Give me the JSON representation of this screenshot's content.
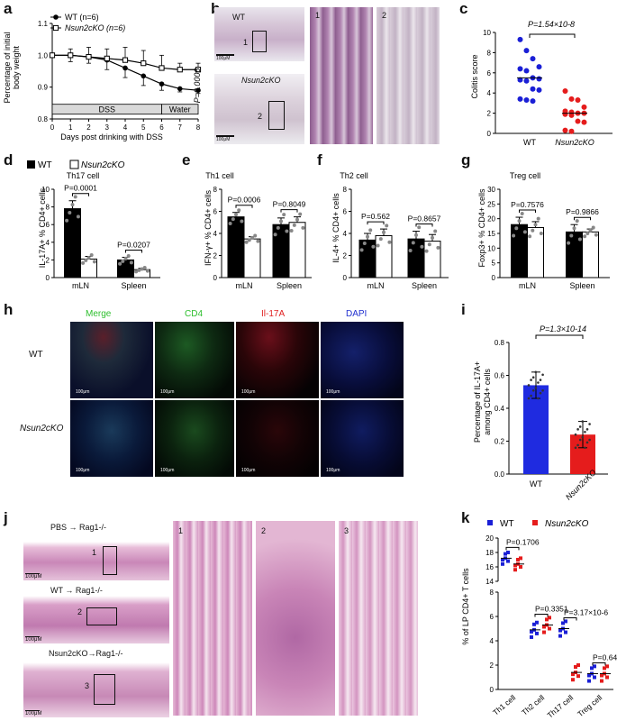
{
  "panels": {
    "a": {
      "label": "a",
      "ylabel_line1": "Percentage of initial",
      "ylabel_line2": "body weight",
      "xlabel": "Days post drinking with DSS",
      "legend": [
        "WT (n=6)",
        "Nsun2cKO (n=6)"
      ],
      "pvalue": "P=0.0006",
      "bars": [
        "DSS",
        "Water"
      ],
      "yticks": [
        "0.8",
        "0.9",
        "1.0",
        "1.1"
      ],
      "xticks": [
        "0",
        "1",
        "2",
        "3",
        "4",
        "5",
        "6",
        "7",
        "8"
      ]
    },
    "b": {
      "label": "b",
      "wt": "WT",
      "ko": "Nsun2cKO",
      "z1": "1",
      "z2": "2",
      "box1": "1",
      "box2": "2",
      "scale1": "100μM",
      "scale2": "100μM"
    },
    "c": {
      "label": "c",
      "ylabel": "Colitis score",
      "pvalue": "P=1.54×10-8",
      "xticks": [
        "WT",
        "Nsun2cKO"
      ],
      "yticks": [
        "0",
        "2",
        "4",
        "6",
        "8",
        "10"
      ]
    },
    "d": {
      "label": "d",
      "title": "Th17 cell",
      "legend": [
        "WT",
        "Nsun2cKO"
      ],
      "ylabel": "IL-17A+ % CD4+ cells",
      "p1": "P=0.0001",
      "p2": "P=0.0207",
      "xticks": [
        "mLN",
        "Spleen"
      ],
      "yticks": [
        "0",
        "2",
        "4",
        "6",
        "8",
        "10"
      ]
    },
    "e": {
      "label": "e",
      "title": "Th1 cell",
      "ylabel": "IFN-γ+ % CD4+ cells",
      "p1": "P=0.0006",
      "p2": "P=0.8049",
      "xticks": [
        "mLN",
        "Spleen"
      ],
      "yticks": [
        "0",
        "2",
        "4",
        "6",
        "8"
      ]
    },
    "f": {
      "label": "f",
      "title": "Th2 cell",
      "ylabel": "IL-4+ % CD4+ cells",
      "p1": "P=0.562",
      "p2": "P=0.8657",
      "xticks": [
        "mLN",
        "Spleen"
      ],
      "yticks": [
        "0",
        "2",
        "4",
        "6",
        "8"
      ]
    },
    "g": {
      "label": "g",
      "title": "Treg cell",
      "ylabel": "Foxp3+ % CD4+ cells",
      "p1": "P=0.7576",
      "p2": "P=0.9866",
      "xticks": [
        "mLN",
        "Spleen"
      ],
      "yticks": [
        "0",
        "5",
        "10",
        "15",
        "20",
        "25",
        "30"
      ]
    },
    "h": {
      "label": "h",
      "merge1": "Merge",
      "cd4": "CD4",
      "il17a": "Il-17A",
      "dapi": "DAPI",
      "wt": "WT",
      "ko": "Nsun2cKO",
      "scale": "100μm"
    },
    "i": {
      "label": "i",
      "ylabel_line1": "Percentage of IL-17A+",
      "ylabel_line2": "among CD4+ cells",
      "pvalue": "P=1.3×10-14",
      "xticks": [
        "WT",
        "Nsun2cKO"
      ],
      "yticks": [
        "0.0",
        "0.2",
        "0.4",
        "0.6",
        "0.8"
      ]
    },
    "j": {
      "label": "j",
      "row1": "PBS → Rag1-/-",
      "row2": "WT → Rag1-/-",
      "row3": "Nsun2cKO→Rag1-/-",
      "z1": "1",
      "z2": "2",
      "z3": "3",
      "b1": "1",
      "b2": "2",
      "b3": "3",
      "scale": "100μM"
    },
    "k": {
      "label": "k",
      "legend": [
        "WT",
        "Nsun2cKO"
      ],
      "ylabel": "% of LP CD4+ T cells",
      "p1": "P=0.1706",
      "p2": "P=0.3351",
      "p3": "P=3.17×10-6",
      "p4": "P=0.6488",
      "xticks": [
        "Th1 cell",
        "Th2 cell",
        "Th17 cell",
        "Treg cell"
      ],
      "yticks_top": [
        "14",
        "16",
        "18",
        "20"
      ],
      "yticks_bottom": [
        "0",
        "2",
        "4",
        "6",
        "8"
      ]
    }
  },
  "chart_data": [
    {
      "type": "line",
      "panel": "a",
      "x": [
        0,
        1,
        2,
        3,
        4,
        5,
        6,
        7,
        8
      ],
      "series": [
        {
          "name": "WT (n=6)",
          "values": [
            1.0,
            1.0,
            0.995,
            0.985,
            0.96,
            0.935,
            0.91,
            0.895,
            0.89
          ],
          "error": [
            0.0,
            0.02,
            0.02,
            0.03,
            0.03,
            0.03,
            0.02,
            0.01,
            0.01
          ]
        },
        {
          "name": "Nsun2cKO (n=6)",
          "values": [
            1.0,
            1.0,
            0.995,
            0.99,
            0.985,
            0.975,
            0.96,
            0.955,
            0.955
          ],
          "error": [
            0.0,
            0.02,
            0.03,
            0.03,
            0.04,
            0.04,
            0.04,
            0.02,
            0.02
          ]
        }
      ],
      "xlabel": "Days post drinking with DSS",
      "ylabel": "Percentage of initial body weight",
      "xlim": [
        0,
        8
      ],
      "ylim": [
        0.8,
        1.1
      ]
    },
    {
      "type": "scatter",
      "panel": "c",
      "categories": [
        "WT",
        "Nsun2cKO"
      ],
      "series": [
        {
          "name": "WT",
          "values": [
            9.3,
            8.2,
            7.4,
            6.6,
            6.4,
            6.2,
            5.5,
            5.4,
            5.3,
            5.2,
            4.4,
            4.3,
            3.4,
            3.3,
            3.2
          ],
          "mean": 5.5
        },
        {
          "name": "Nsun2cKO",
          "values": [
            4.2,
            3.4,
            3.3,
            2.6,
            2.2,
            2.1,
            2.0,
            2.0,
            1.9,
            1.8,
            1.2,
            1.1,
            0.3,
            0.2
          ],
          "mean": 2.0
        }
      ],
      "ylabel": "Colitis score",
      "ylim": [
        0,
        10
      ]
    },
    {
      "type": "bar",
      "panel": "d",
      "title": "Th17 cell",
      "categories": [
        "mLN",
        "Spleen"
      ],
      "series": [
        {
          "name": "WT",
          "values": [
            7.8,
            2.0
          ],
          "error": [
            0.9,
            0.3
          ]
        },
        {
          "name": "Nsun2cKO",
          "values": [
            2.1,
            0.9
          ],
          "error": [
            0.3,
            0.15
          ]
        }
      ],
      "ylabel": "IL-17A+ % CD4+ cells",
      "ylim": [
        0,
        10
      ]
    },
    {
      "type": "bar",
      "panel": "e",
      "title": "Th1 cell",
      "categories": [
        "mLN",
        "Spleen"
      ],
      "series": [
        {
          "name": "WT",
          "values": [
            5.5,
            4.8
          ],
          "error": [
            0.4,
            0.6
          ]
        },
        {
          "name": "Nsun2cKO",
          "values": [
            3.5,
            5.0
          ],
          "error": [
            0.2,
            0.5
          ]
        }
      ],
      "ylabel": "IFN-γ+ % CD4+ cells",
      "ylim": [
        0,
        8
      ]
    },
    {
      "type": "bar",
      "panel": "f",
      "title": "Th2 cell",
      "categories": [
        "mLN",
        "Spleen"
      ],
      "series": [
        {
          "name": "WT",
          "values": [
            3.4,
            3.5
          ],
          "error": [
            0.6,
            0.7
          ]
        },
        {
          "name": "Nsun2cKO",
          "values": [
            3.8,
            3.3
          ],
          "error": [
            0.6,
            0.6
          ]
        }
      ],
      "ylabel": "IL-4+ % CD4+ cells",
      "ylim": [
        0,
        8
      ]
    },
    {
      "type": "bar",
      "panel": "g",
      "title": "Treg cell",
      "categories": [
        "mLN",
        "Spleen"
      ],
      "series": [
        {
          "name": "WT",
          "values": [
            18.0,
            15.5
          ],
          "error": [
            2.5,
            2.5
          ]
        },
        {
          "name": "Nsun2cKO",
          "values": [
            17.0,
            15.5
          ],
          "error": [
            2.0,
            1.0
          ]
        }
      ],
      "ylabel": "Foxp3+ % CD4+ cells",
      "ylim": [
        0,
        30
      ]
    },
    {
      "type": "bar",
      "panel": "i",
      "categories": [
        "WT",
        "Nsun2cKO"
      ],
      "values": [
        0.54,
        0.24
      ],
      "error": [
        0.08,
        0.08
      ],
      "colors": [
        "#1f2be0",
        "#e51c1c"
      ],
      "ylabel": "Percentage of IL-17A+ among CD4+ cells",
      "ylim": [
        0,
        0.8
      ]
    },
    {
      "type": "scatter",
      "panel": "k",
      "categories": [
        "Th1 cell",
        "Th2 cell",
        "Th17 cell",
        "Treg cell"
      ],
      "series": [
        {
          "name": "WT",
          "values": [
            17.2,
            4.9,
            5.0,
            1.3
          ]
        },
        {
          "name": "Nsun2cKO",
          "values": [
            16.4,
            5.3,
            1.4,
            1.3
          ]
        }
      ],
      "ylabel": "% of LP CD4+ T cells",
      "ylim": [
        0,
        20
      ],
      "axis_break": [
        8,
        14
      ]
    }
  ]
}
